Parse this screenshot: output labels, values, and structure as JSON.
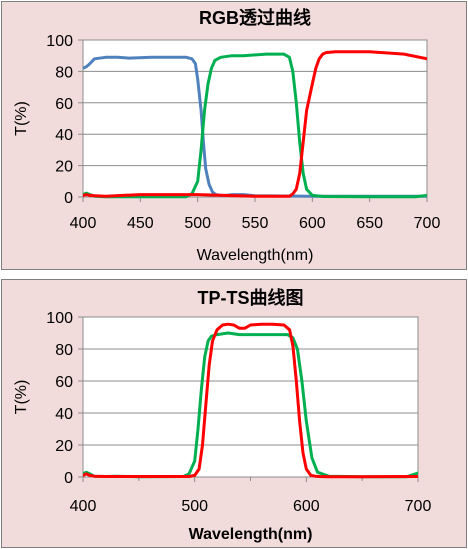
{
  "chart_data": [
    {
      "type": "line",
      "title": "RGB透过曲线",
      "xlabel": "Wavelength(nm)",
      "ylabel": "T(%)",
      "xlim": [
        400,
        700
      ],
      "ylim": [
        0,
        100
      ],
      "xticks": [
        400,
        450,
        500,
        550,
        600,
        650,
        700
      ],
      "yticks": [
        0,
        20,
        40,
        60,
        80,
        100
      ],
      "grid": "horizontal",
      "legend": "none",
      "xlabel_bold": false,
      "series": [
        {
          "color": "#4f81bd",
          "x": [
            400,
            403,
            406,
            410,
            420,
            430,
            440,
            460,
            480,
            490,
            495,
            498,
            500,
            503,
            505,
            507,
            510,
            513,
            516,
            520,
            525,
            530,
            540,
            550,
            600,
            650,
            700
          ],
          "y": [
            82,
            83,
            85,
            88,
            89,
            89,
            88.5,
            89,
            89,
            89,
            88,
            85,
            75,
            55,
            35,
            18,
            8,
            3,
            1.5,
            1,
            1,
            1.5,
            1.5,
            0.8,
            0.5,
            0.5,
            0.5
          ]
        },
        {
          "color": "#00b050",
          "x": [
            400,
            403,
            406,
            410,
            420,
            450,
            490,
            495,
            500,
            503,
            506,
            509,
            512,
            515,
            520,
            530,
            540,
            560,
            575,
            580,
            583,
            586,
            589,
            592,
            595,
            600,
            610,
            650,
            690,
            700
          ],
          "y": [
            1.5,
            2.5,
            1.5,
            0.5,
            0.2,
            0.2,
            0.2,
            2,
            10,
            30,
            55,
            72,
            82,
            87,
            89,
            90,
            90,
            91,
            91,
            89,
            80,
            60,
            35,
            15,
            5,
            1,
            0.3,
            0.2,
            0.2,
            1
          ]
        },
        {
          "color": "#ff0000",
          "x": [
            400,
            403,
            406,
            410,
            420,
            450,
            500,
            550,
            580,
            583,
            586,
            589,
            592,
            595,
            600,
            603,
            606,
            609,
            612,
            620,
            630,
            650,
            680,
            700
          ],
          "y": [
            1,
            1.5,
            1,
            0.8,
            0.5,
            1.5,
            1.5,
            0.5,
            0.5,
            2,
            5,
            15,
            35,
            55,
            72,
            82,
            88,
            91,
            92,
            92.5,
            92.5,
            92.5,
            91,
            88
          ]
        }
      ]
    },
    {
      "type": "line",
      "title": "TP-TS曲线图",
      "xlabel": "Wavelength(nm)",
      "ylabel": "T(%)",
      "xlim": [
        400,
        700
      ],
      "ylim": [
        0,
        100
      ],
      "xticks": [
        400,
        500,
        600,
        700
      ],
      "minor_xticks": [
        450,
        550,
        650
      ],
      "yticks": [
        0,
        20,
        40,
        60,
        80,
        100
      ],
      "grid": "horizontal",
      "legend": "none",
      "xlabel_bold": true,
      "series": [
        {
          "color": "#00b050",
          "x": [
            400,
            403,
            406,
            410,
            420,
            430,
            450,
            490,
            495,
            500,
            503,
            506,
            509,
            512,
            515,
            520,
            530,
            540,
            560,
            575,
            583,
            588,
            592,
            596,
            600,
            605,
            610,
            620,
            650,
            690,
            700
          ],
          "y": [
            2,
            3,
            2,
            0.5,
            0.3,
            0.5,
            0.2,
            0.3,
            2,
            10,
            30,
            55,
            75,
            85,
            88,
            89,
            90,
            89,
            89,
            89,
            89,
            87,
            80,
            60,
            35,
            12,
            3,
            0.5,
            0.2,
            0.2,
            2.5
          ]
        },
        {
          "color": "#ff0000",
          "x": [
            400,
            403,
            406,
            410,
            420,
            450,
            495,
            500,
            504,
            507,
            510,
            513,
            516,
            520,
            525,
            530,
            535,
            540,
            545,
            550,
            560,
            570,
            580,
            585,
            588,
            591,
            594,
            597,
            600,
            604,
            608,
            612,
            620,
            650,
            700
          ],
          "y": [
            1,
            2,
            1,
            0.5,
            0.3,
            0.3,
            0.3,
            1,
            5,
            20,
            45,
            70,
            85,
            92,
            95,
            95.5,
            95,
            93,
            93,
            95,
            95.5,
            95.5,
            95,
            92,
            82,
            60,
            35,
            15,
            5,
            1,
            0.5,
            0.3,
            0.2,
            0.2,
            0.3
          ]
        }
      ]
    }
  ]
}
